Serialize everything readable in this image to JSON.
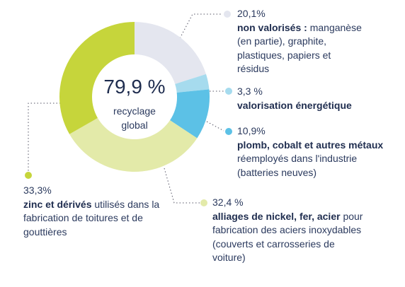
{
  "chart_data": {
    "type": "donut",
    "center_label": "79,9 %",
    "center_text": "recyclage global",
    "categories": [
      "non valorisés :",
      "valorisation énergétique",
      "plomb, cobalt et autres métaux",
      "alliages de nickel, fer, acier",
      "zinc et dérivés"
    ],
    "descriptions": [
      "manganèse (en partie), graphite, plastiques, papiers et résidus",
      null,
      "réemployés dans l'industrie (batteries neuves)",
      "pour fabrication des aciers inoxydables (couverts et carrosseries de voiture)",
      "utilisés dans la fabrication de toitures et de gouttières"
    ],
    "values": [
      20.1,
      3.3,
      10.9,
      32.4,
      33.3
    ],
    "value_labels": [
      "20,1%",
      "3,3 %",
      "10,9%",
      "32,4 %",
      "33,3%"
    ],
    "colors": [
      "#e4e6ef",
      "#a6dbee",
      "#5cc1e6",
      "#e3eaa9",
      "#c6d53b"
    ]
  }
}
